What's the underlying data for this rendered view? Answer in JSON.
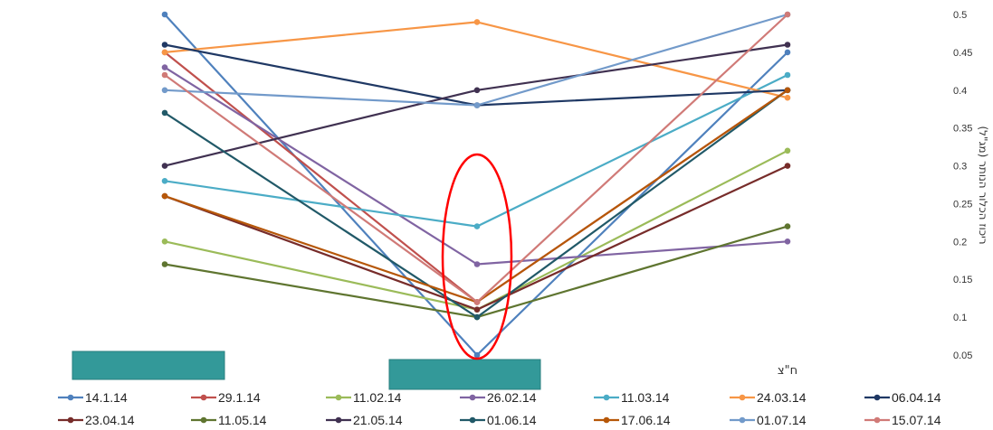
{
  "chart_data": {
    "type": "line",
    "categories": [
      "",
      "",
      "ח\"צ"
    ],
    "ylabel": "ריכוז הכלור הנותר (מג\"ל)",
    "ylim": [
      0.05,
      0.5
    ],
    "yticks": [
      "0.05",
      "0.1",
      "0.15",
      "0.2",
      "0.25",
      "0.3",
      "0.35",
      "0.4",
      "0.45",
      "0.5"
    ],
    "grid": false,
    "legend_position": "bottom",
    "series": [
      {
        "name": "14.1.14",
        "color": "#4f81bd",
        "values": [
          0.5,
          0.05,
          0.45
        ]
      },
      {
        "name": "29.1.14",
        "color": "#c0504d",
        "values": [
          0.45,
          0.12,
          0.4
        ]
      },
      {
        "name": "11.02.14",
        "color": "#9bbb59",
        "values": [
          0.2,
          0.11,
          0.32
        ]
      },
      {
        "name": "26.02.14",
        "color": "#8064a2",
        "values": [
          0.43,
          0.17,
          0.2
        ]
      },
      {
        "name": "11.03.14",
        "color": "#4bacc6",
        "values": [
          0.28,
          0.22,
          0.42
        ]
      },
      {
        "name": "24.03.14",
        "color": "#f79646",
        "values": [
          0.45,
          0.49,
          0.39
        ]
      },
      {
        "name": "06.04.14",
        "color": "#1f3864",
        "values": [
          0.46,
          0.38,
          0.4
        ]
      },
      {
        "name": "23.04.14",
        "color": "#772c2a",
        "values": [
          0.26,
          0.11,
          0.3
        ]
      },
      {
        "name": "11.05.14",
        "color": "#5f7530",
        "values": [
          0.17,
          0.1,
          0.22
        ]
      },
      {
        "name": "21.05.14",
        "color": "#403151",
        "values": [
          0.3,
          0.4,
          0.46
        ]
      },
      {
        "name": "01.06.14",
        "color": "#215968",
        "values": [
          0.37,
          0.1,
          0.4
        ]
      },
      {
        "name": "17.06.14",
        "color": "#b65708",
        "values": [
          0.26,
          0.12,
          0.4
        ]
      },
      {
        "name": "01.07.14",
        "color": "#729aca",
        "values": [
          0.4,
          0.38,
          0.5
        ]
      },
      {
        "name": "15.07.14",
        "color": "#d07a77",
        "values": [
          0.42,
          0.12,
          0.5
        ]
      }
    ],
    "highlight": {
      "shape": "ellipse",
      "color": "#ff0000",
      "category_index": 1
    },
    "redactions": {
      "color": "#339999",
      "category_indices": [
        0,
        1
      ]
    }
  }
}
